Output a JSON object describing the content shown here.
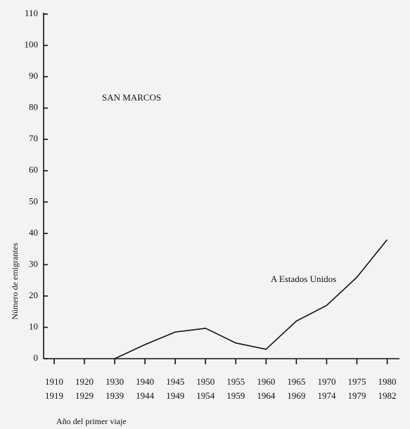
{
  "chart_data": {
    "type": "line",
    "annotations": [
      "SAN MARCOS",
      "A Estados Unidos"
    ],
    "xlabel": "Año del primer viaje",
    "ylabel": "Número de emigrantes",
    "categories": [
      [
        "1910",
        "1919"
      ],
      [
        "1920",
        "1929"
      ],
      [
        "1930",
        "1939"
      ],
      [
        "1940",
        "1944"
      ],
      [
        "1945",
        "1949"
      ],
      [
        "1950",
        "1954"
      ],
      [
        "1955",
        "1959"
      ],
      [
        "1960",
        "1964"
      ],
      [
        "1965",
        "1969"
      ],
      [
        "1970",
        "1974"
      ],
      [
        "1975",
        "1979"
      ],
      [
        "1980",
        "1982"
      ]
    ],
    "series": [
      {
        "name": "A Estados Unidos",
        "color": "#111111",
        "values": [
          null,
          null,
          0,
          4.5,
          8.5,
          9.7,
          5,
          3,
          12,
          17,
          26,
          38
        ]
      }
    ],
    "ylim": [
      0,
      110
    ],
    "yticks": [
      0,
      10,
      20,
      30,
      40,
      50,
      60,
      70,
      80,
      90,
      100,
      110
    ]
  }
}
